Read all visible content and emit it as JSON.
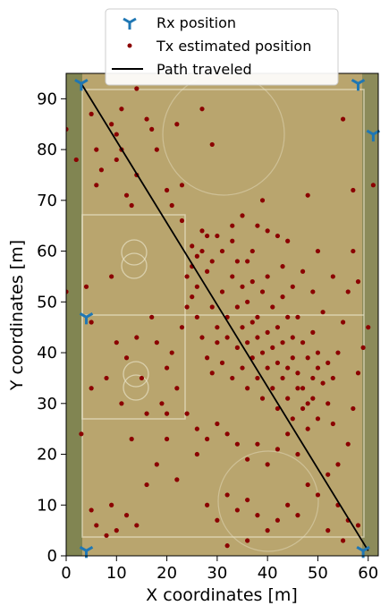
{
  "chart_data": {
    "type": "scatter",
    "xlabel": "X coordinates [m]",
    "ylabel": "Y coordinates [m]",
    "xlim": [
      0,
      62
    ],
    "ylim": [
      0,
      95
    ],
    "xticks": [
      0,
      10,
      20,
      30,
      40,
      50,
      60
    ],
    "yticks": [
      0,
      10,
      20,
      30,
      40,
      50,
      60,
      70,
      80,
      90
    ],
    "grid": false,
    "legend_position": "top-center",
    "background": "aerial photo of a football field",
    "colors": {
      "rx": "#1f77b4",
      "tx": "#8b0000",
      "path": "#000000",
      "field": "#b9a56e"
    },
    "legend": [
      {
        "label": "Rx position",
        "marker": "tri-down",
        "color": "#1f77b4"
      },
      {
        "label": "Tx estimated position",
        "marker": "dot",
        "color": "#8b0000"
      },
      {
        "label": "Path traveled",
        "marker": "line",
        "color": "#000000"
      }
    ],
    "series": [
      {
        "name": "Rx position",
        "points": [
          [
            3,
            93
          ],
          [
            58,
            93
          ],
          [
            4,
            47
          ],
          [
            61,
            83
          ],
          [
            4,
            1
          ],
          [
            59,
            1
          ]
        ]
      },
      {
        "name": "Path traveled",
        "points": [
          [
            3,
            93
          ],
          [
            60,
            1
          ]
        ]
      },
      {
        "name": "Tx estimated position",
        "points": [
          [
            0,
            84
          ],
          [
            0,
            52
          ],
          [
            2,
            78
          ],
          [
            5,
            87
          ],
          [
            6,
            80
          ],
          [
            6,
            73
          ],
          [
            7,
            76
          ],
          [
            9,
            85
          ],
          [
            10,
            83
          ],
          [
            10,
            78
          ],
          [
            11,
            80
          ],
          [
            12,
            71
          ],
          [
            13,
            69
          ],
          [
            14,
            75
          ],
          [
            16,
            86
          ],
          [
            17,
            84
          ],
          [
            18,
            80
          ],
          [
            20,
            72
          ],
          [
            21,
            69
          ],
          [
            23,
            73
          ],
          [
            11,
            88
          ],
          [
            14,
            92
          ],
          [
            27,
            88
          ],
          [
            29,
            81
          ],
          [
            22,
            85
          ],
          [
            4,
            53
          ],
          [
            5,
            46
          ],
          [
            9,
            55
          ],
          [
            10,
            42
          ],
          [
            12,
            39
          ],
          [
            14,
            43
          ],
          [
            15,
            35
          ],
          [
            17,
            47
          ],
          [
            18,
            42
          ],
          [
            20,
            37
          ],
          [
            21,
            40
          ],
          [
            19,
            30
          ],
          [
            16,
            28
          ],
          [
            13,
            23
          ],
          [
            20,
            28
          ],
          [
            22,
            33
          ],
          [
            23,
            45
          ],
          [
            24,
            49
          ],
          [
            25,
            57
          ],
          [
            26,
            53
          ],
          [
            27,
            60
          ],
          [
            28,
            56
          ],
          [
            29,
            49
          ],
          [
            30,
            45
          ],
          [
            31,
            52
          ],
          [
            32,
            47
          ],
          [
            33,
            55
          ],
          [
            34,
            58
          ],
          [
            35,
            53
          ],
          [
            36,
            50
          ],
          [
            37,
            54
          ],
          [
            38,
            47
          ],
          [
            39,
            52
          ],
          [
            40,
            55
          ],
          [
            41,
            49
          ],
          [
            42,
            45
          ],
          [
            43,
            51
          ],
          [
            44,
            47
          ],
          [
            45,
            43
          ],
          [
            46,
            47
          ],
          [
            47,
            42
          ],
          [
            48,
            39
          ],
          [
            49,
            44
          ],
          [
            50,
            40
          ],
          [
            24,
            55
          ],
          [
            25,
            51
          ],
          [
            26,
            47
          ],
          [
            27,
            43
          ],
          [
            28,
            39
          ],
          [
            29,
            36
          ],
          [
            30,
            42
          ],
          [
            31,
            38
          ],
          [
            32,
            43
          ],
          [
            33,
            35
          ],
          [
            34,
            41
          ],
          [
            35,
            37
          ],
          [
            36,
            33
          ],
          [
            37,
            39
          ],
          [
            38,
            35
          ],
          [
            39,
            31
          ],
          [
            40,
            37
          ],
          [
            41,
            33
          ],
          [
            42,
            29
          ],
          [
            43,
            35
          ],
          [
            44,
            31
          ],
          [
            45,
            27
          ],
          [
            46,
            33
          ],
          [
            47,
            29
          ],
          [
            48,
            25
          ],
          [
            49,
            31
          ],
          [
            50,
            27
          ],
          [
            51,
            34
          ],
          [
            52,
            38
          ],
          [
            53,
            35
          ],
          [
            54,
            40
          ],
          [
            55,
            46
          ],
          [
            56,
            52
          ],
          [
            57,
            60
          ],
          [
            58,
            54
          ],
          [
            59,
            41
          ],
          [
            60,
            45
          ],
          [
            61,
            73
          ],
          [
            48,
            71
          ],
          [
            42,
            63
          ],
          [
            38,
            65
          ],
          [
            36,
            58
          ],
          [
            33,
            62
          ],
          [
            31,
            60
          ],
          [
            29,
            58
          ],
          [
            28,
            63
          ],
          [
            26,
            59
          ],
          [
            34,
            49
          ],
          [
            35,
            45
          ],
          [
            36,
            42
          ],
          [
            37,
            46
          ],
          [
            38,
            43
          ],
          [
            39,
            40
          ],
          [
            40,
            44
          ],
          [
            41,
            41
          ],
          [
            42,
            38
          ],
          [
            43,
            42
          ],
          [
            44,
            37
          ],
          [
            45,
            39
          ],
          [
            46,
            36
          ],
          [
            47,
            33
          ],
          [
            48,
            30
          ],
          [
            49,
            35
          ],
          [
            50,
            37
          ],
          [
            52,
            30
          ],
          [
            53,
            26
          ],
          [
            54,
            18
          ],
          [
            56,
            22
          ],
          [
            57,
            29
          ],
          [
            58,
            36
          ],
          [
            46,
            20
          ],
          [
            44,
            24
          ],
          [
            42,
            21
          ],
          [
            40,
            18
          ],
          [
            38,
            22
          ],
          [
            36,
            19
          ],
          [
            34,
            22
          ],
          [
            32,
            24
          ],
          [
            30,
            26
          ],
          [
            28,
            23
          ],
          [
            26,
            25
          ],
          [
            24,
            28
          ],
          [
            48,
            14
          ],
          [
            50,
            12
          ],
          [
            52,
            16
          ],
          [
            54,
            10
          ],
          [
            56,
            7
          ],
          [
            58,
            6
          ],
          [
            44,
            10
          ],
          [
            42,
            7
          ],
          [
            40,
            5
          ],
          [
            38,
            8
          ],
          [
            36,
            11
          ],
          [
            34,
            9
          ],
          [
            32,
            12
          ],
          [
            30,
            7
          ],
          [
            28,
            10
          ],
          [
            32,
            2
          ],
          [
            36,
            3
          ],
          [
            46,
            8
          ],
          [
            52,
            5
          ],
          [
            55,
            3
          ],
          [
            5,
            9
          ],
          [
            6,
            6
          ],
          [
            8,
            4
          ],
          [
            9,
            10
          ],
          [
            10,
            5
          ],
          [
            12,
            8
          ],
          [
            14,
            6
          ],
          [
            3,
            24
          ],
          [
            5,
            33
          ],
          [
            8,
            35
          ],
          [
            11,
            30
          ],
          [
            22,
            15
          ],
          [
            26,
            20
          ],
          [
            20,
            23
          ],
          [
            18,
            18
          ],
          [
            16,
            14
          ],
          [
            44,
            62
          ],
          [
            40,
            64
          ],
          [
            37,
            60
          ],
          [
            50,
            60
          ],
          [
            53,
            55
          ],
          [
            49,
            52
          ],
          [
            51,
            48
          ],
          [
            47,
            56
          ],
          [
            45,
            53
          ],
          [
            43,
            57
          ],
          [
            55,
            86
          ],
          [
            57,
            72
          ],
          [
            39,
            70
          ],
          [
            35,
            67
          ],
          [
            33,
            65
          ],
          [
            30,
            63
          ],
          [
            27,
            64
          ],
          [
            25,
            61
          ],
          [
            23,
            66
          ]
        ]
      }
    ]
  }
}
